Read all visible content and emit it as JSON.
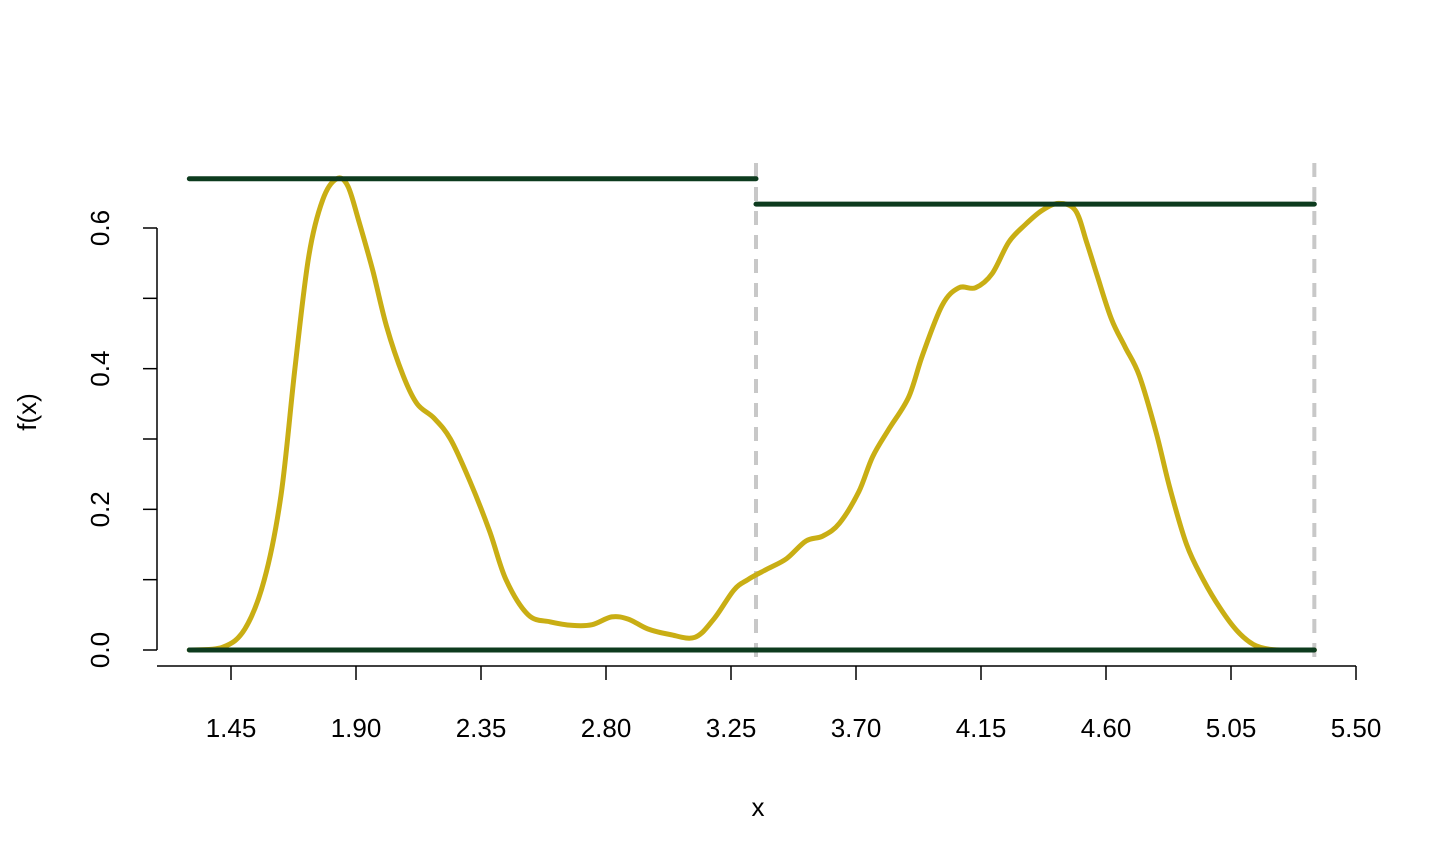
{
  "chart_data": {
    "type": "line",
    "title": "",
    "xlabel": "x",
    "ylabel": "f(x)",
    "xlim": [
      1.3,
      5.5
    ],
    "ylim": [
      0.0,
      0.67
    ],
    "x_ticks": [
      1.45,
      1.9,
      2.35,
      2.8,
      3.25,
      3.7,
      4.15,
      4.6,
      5.05,
      5.5
    ],
    "x_tick_labels": [
      "1.45",
      "1.90",
      "2.35",
      "2.80",
      "3.25",
      "3.70",
      "4.15",
      "4.60",
      "5.05",
      "5.50"
    ],
    "y_ticks": [
      0.0,
      0.1,
      0.2,
      0.3,
      0.4,
      0.5,
      0.6
    ],
    "y_tick_labels": [
      "0.0",
      "",
      "0.2",
      "",
      "0.4",
      "",
      "0.6"
    ],
    "grid": false,
    "colors": {
      "density": "#C9AE14",
      "bounds": "#0D3B1E",
      "split": "#C8C8C8"
    },
    "density": {
      "x": [
        1.3,
        1.42,
        1.5,
        1.57,
        1.63,
        1.68,
        1.73,
        1.78,
        1.83,
        1.87,
        1.91,
        1.96,
        2.01,
        2.07,
        2.12,
        2.18,
        2.24,
        2.31,
        2.38,
        2.44,
        2.52,
        2.6,
        2.68,
        2.75,
        2.82,
        2.88,
        2.95,
        3.03,
        3.12,
        3.19,
        3.26,
        3.31,
        3.38,
        3.45,
        3.52,
        3.58,
        3.64,
        3.71,
        3.76,
        3.82,
        3.89,
        3.94,
        4.01,
        4.07,
        4.13,
        4.19,
        4.25,
        4.31,
        4.37,
        4.43,
        4.49,
        4.53,
        4.57,
        4.62,
        4.67,
        4.72,
        4.78,
        4.83,
        4.89,
        4.95,
        5.01,
        5.07,
        5.13,
        5.19,
        5.27,
        5.35
      ],
      "y": [
        0.0,
        0.004,
        0.03,
        0.1,
        0.22,
        0.4,
        0.56,
        0.64,
        0.67,
        0.66,
        0.61,
        0.54,
        0.46,
        0.39,
        0.35,
        0.33,
        0.3,
        0.24,
        0.17,
        0.1,
        0.05,
        0.04,
        0.035,
        0.036,
        0.047,
        0.044,
        0.03,
        0.022,
        0.018,
        0.045,
        0.085,
        0.1,
        0.115,
        0.13,
        0.155,
        0.162,
        0.18,
        0.225,
        0.275,
        0.315,
        0.36,
        0.42,
        0.49,
        0.515,
        0.515,
        0.535,
        0.58,
        0.605,
        0.625,
        0.635,
        0.625,
        0.58,
        0.53,
        0.47,
        0.43,
        0.39,
        0.31,
        0.23,
        0.15,
        0.1,
        0.06,
        0.028,
        0.008,
        0.001,
        0.0,
        0.0
      ]
    },
    "upper_bounds": [
      {
        "x": [
          1.3,
          3.34
        ],
        "y": 0.67
      },
      {
        "x": [
          3.34,
          5.35
        ],
        "y": 0.634
      }
    ],
    "baseline": {
      "x": [
        1.3,
        5.35
      ],
      "y": 0.0
    },
    "split_lines_x": [
      3.34,
      5.35
    ]
  }
}
